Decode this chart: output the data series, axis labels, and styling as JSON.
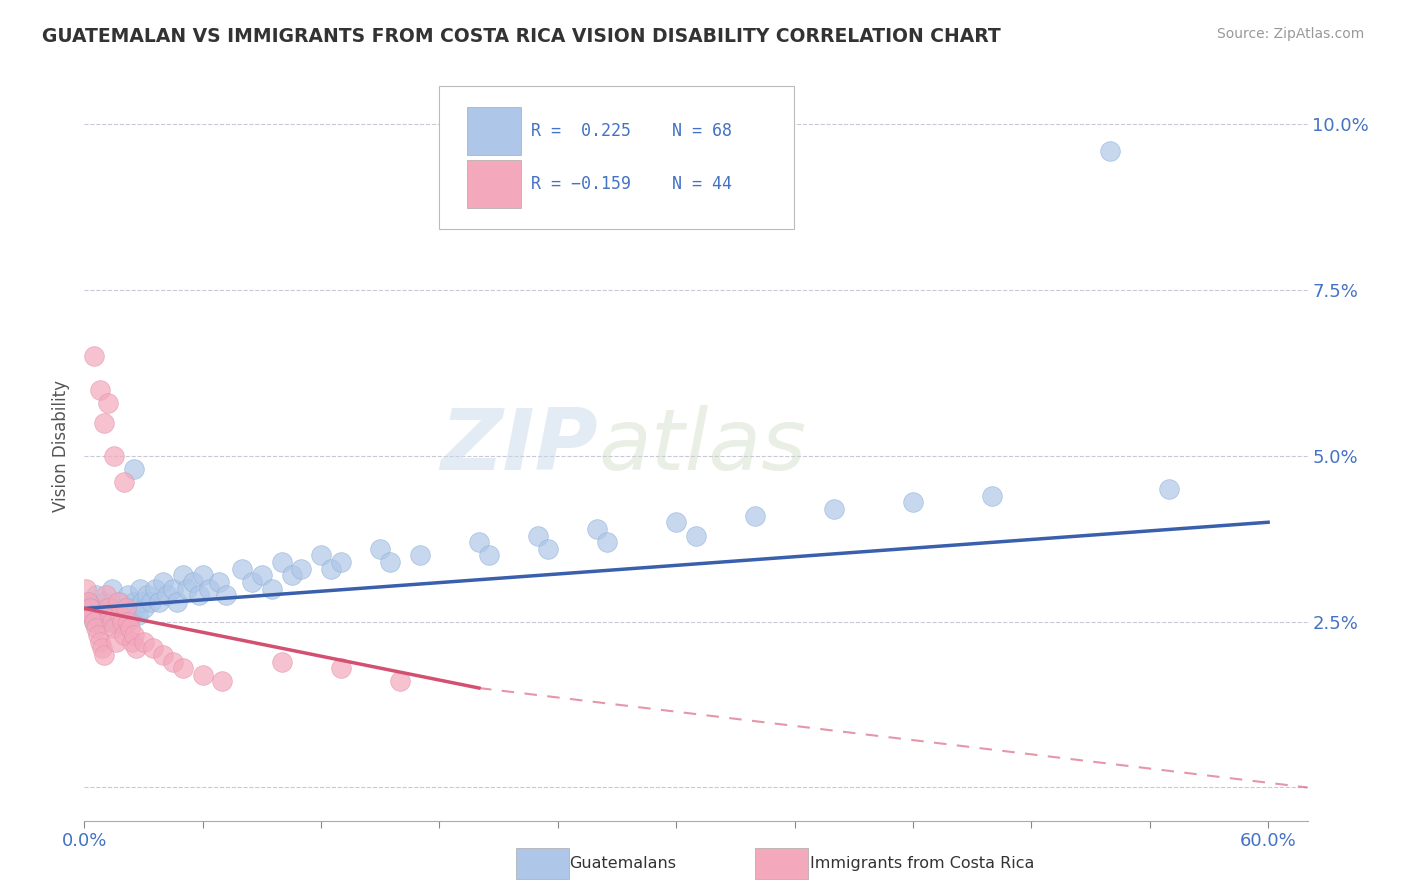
{
  "title": "GUATEMALAN VS IMMIGRANTS FROM COSTA RICA VISION DISABILITY CORRELATION CHART",
  "source": "Source: ZipAtlas.com",
  "ylabel": "Vision Disability",
  "xlim": [
    0.0,
    0.62
  ],
  "ylim": [
    -0.005,
    0.108
  ],
  "yticks": [
    0.0,
    0.025,
    0.05,
    0.075,
    0.1
  ],
  "ytick_labels": [
    "",
    "2.5%",
    "5.0%",
    "7.5%",
    "10.0%"
  ],
  "xtick_positions": [
    0.0,
    0.06,
    0.12,
    0.18,
    0.24,
    0.3,
    0.36,
    0.42,
    0.48,
    0.54,
    0.6
  ],
  "xtick_labels": [
    "0.0%",
    "",
    "",
    "",
    "",
    "",
    "",
    "",
    "",
    "",
    "60.0%"
  ],
  "blue_color": "#aec6e8",
  "pink_color": "#f4a8bc",
  "blue_line_color": "#3a5fac",
  "pink_line_color": "#d45070",
  "watermark_zip": "ZIP",
  "watermark_atlas": "atlas",
  "blue_points": [
    [
      0.002,
      0.028
    ],
    [
      0.003,
      0.027
    ],
    [
      0.004,
      0.026
    ],
    [
      0.005,
      0.025
    ],
    [
      0.006,
      0.029
    ],
    [
      0.007,
      0.027
    ],
    [
      0.008,
      0.026
    ],
    [
      0.009,
      0.025
    ],
    [
      0.01,
      0.028
    ],
    [
      0.011,
      0.027
    ],
    [
      0.012,
      0.026
    ],
    [
      0.013,
      0.025
    ],
    [
      0.014,
      0.03
    ],
    [
      0.015,
      0.027
    ],
    [
      0.016,
      0.026
    ],
    [
      0.017,
      0.025
    ],
    [
      0.018,
      0.028
    ],
    [
      0.019,
      0.027
    ],
    [
      0.02,
      0.026
    ],
    [
      0.021,
      0.025
    ],
    [
      0.022,
      0.029
    ],
    [
      0.023,
      0.027
    ],
    [
      0.024,
      0.026
    ],
    [
      0.025,
      0.028
    ],
    [
      0.026,
      0.027
    ],
    [
      0.027,
      0.026
    ],
    [
      0.028,
      0.03
    ],
    [
      0.029,
      0.028
    ],
    [
      0.03,
      0.027
    ],
    [
      0.032,
      0.029
    ],
    [
      0.034,
      0.028
    ],
    [
      0.036,
      0.03
    ],
    [
      0.038,
      0.028
    ],
    [
      0.04,
      0.031
    ],
    [
      0.042,
      0.029
    ],
    [
      0.045,
      0.03
    ],
    [
      0.047,
      0.028
    ],
    [
      0.05,
      0.032
    ],
    [
      0.052,
      0.03
    ],
    [
      0.055,
      0.031
    ],
    [
      0.058,
      0.029
    ],
    [
      0.06,
      0.032
    ],
    [
      0.063,
      0.03
    ],
    [
      0.068,
      0.031
    ],
    [
      0.072,
      0.029
    ],
    [
      0.08,
      0.033
    ],
    [
      0.085,
      0.031
    ],
    [
      0.09,
      0.032
    ],
    [
      0.095,
      0.03
    ],
    [
      0.1,
      0.034
    ],
    [
      0.105,
      0.032
    ],
    [
      0.025,
      0.048
    ],
    [
      0.11,
      0.033
    ],
    [
      0.12,
      0.035
    ],
    [
      0.125,
      0.033
    ],
    [
      0.13,
      0.034
    ],
    [
      0.15,
      0.036
    ],
    [
      0.155,
      0.034
    ],
    [
      0.17,
      0.035
    ],
    [
      0.2,
      0.037
    ],
    [
      0.205,
      0.035
    ],
    [
      0.23,
      0.038
    ],
    [
      0.235,
      0.036
    ],
    [
      0.26,
      0.039
    ],
    [
      0.265,
      0.037
    ],
    [
      0.3,
      0.04
    ],
    [
      0.31,
      0.038
    ],
    [
      0.34,
      0.041
    ],
    [
      0.38,
      0.042
    ],
    [
      0.42,
      0.043
    ],
    [
      0.46,
      0.044
    ],
    [
      0.52,
      0.096
    ],
    [
      0.55,
      0.045
    ]
  ],
  "pink_points": [
    [
      0.001,
      0.03
    ],
    [
      0.002,
      0.028
    ],
    [
      0.003,
      0.027
    ],
    [
      0.004,
      0.026
    ],
    [
      0.005,
      0.025
    ],
    [
      0.006,
      0.024
    ],
    [
      0.007,
      0.023
    ],
    [
      0.008,
      0.022
    ],
    [
      0.009,
      0.021
    ],
    [
      0.01,
      0.02
    ],
    [
      0.011,
      0.029
    ],
    [
      0.012,
      0.027
    ],
    [
      0.013,
      0.026
    ],
    [
      0.014,
      0.025
    ],
    [
      0.015,
      0.024
    ],
    [
      0.016,
      0.022
    ],
    [
      0.017,
      0.028
    ],
    [
      0.018,
      0.026
    ],
    [
      0.019,
      0.025
    ],
    [
      0.02,
      0.023
    ],
    [
      0.021,
      0.027
    ],
    [
      0.022,
      0.025
    ],
    [
      0.023,
      0.024
    ],
    [
      0.024,
      0.022
    ],
    [
      0.025,
      0.023
    ],
    [
      0.026,
      0.021
    ],
    [
      0.03,
      0.022
    ],
    [
      0.035,
      0.021
    ],
    [
      0.008,
      0.06
    ],
    [
      0.01,
      0.055
    ],
    [
      0.015,
      0.05
    ],
    [
      0.02,
      0.046
    ],
    [
      0.005,
      0.065
    ],
    [
      0.012,
      0.058
    ],
    [
      0.04,
      0.02
    ],
    [
      0.045,
      0.019
    ],
    [
      0.05,
      0.018
    ],
    [
      0.06,
      0.017
    ],
    [
      0.07,
      0.016
    ],
    [
      0.1,
      0.019
    ],
    [
      0.13,
      0.018
    ],
    [
      0.16,
      0.016
    ]
  ]
}
